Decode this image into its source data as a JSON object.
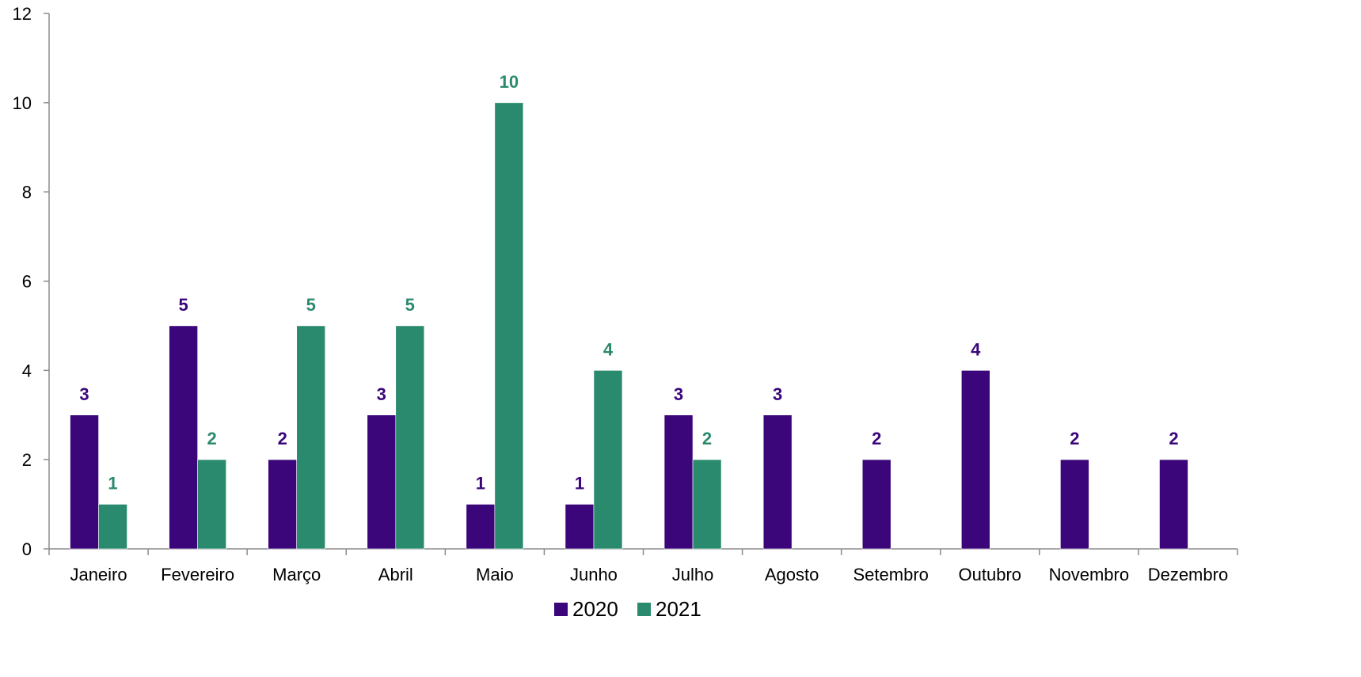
{
  "chart_data": {
    "type": "bar",
    "title": "",
    "xlabel": "",
    "ylabel": "",
    "ylim": [
      0,
      12
    ],
    "yticks": [
      0,
      2,
      4,
      6,
      8,
      10,
      12
    ],
    "grid": false,
    "legend_position": "bottom",
    "categories": [
      "Janeiro",
      "Fevereiro",
      "Março",
      "Abril",
      "Maio",
      "Junho",
      "Julho",
      "Agosto",
      "Setembro",
      "Outubro",
      "Novembro",
      "Dezembro"
    ],
    "series": [
      {
        "name": "2020",
        "color": "#3a0679",
        "values": [
          3,
          5,
          2,
          3,
          1,
          1,
          3,
          3,
          2,
          4,
          2,
          2
        ]
      },
      {
        "name": "2021",
        "color": "#2a8a6e",
        "values": [
          1,
          2,
          5,
          5,
          10,
          4,
          2,
          null,
          null,
          null,
          null,
          null
        ]
      }
    ]
  }
}
